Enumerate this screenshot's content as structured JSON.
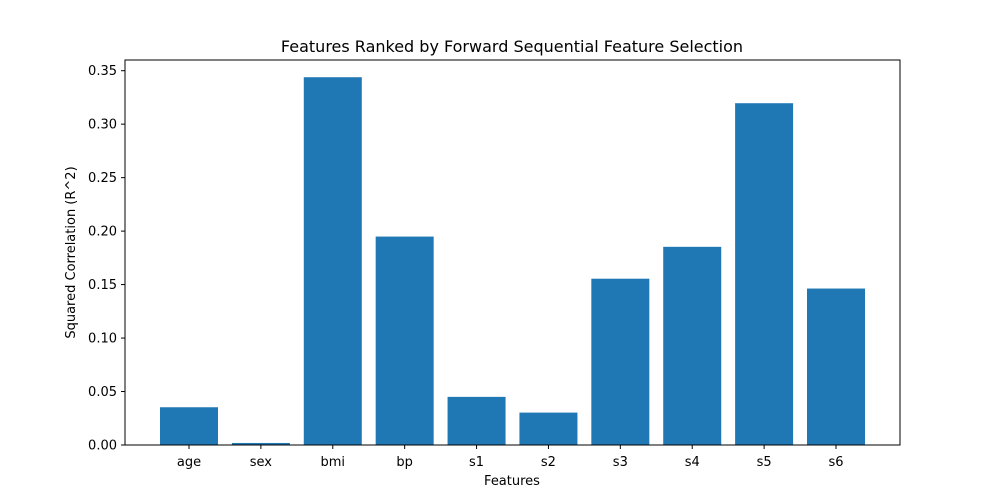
{
  "chart_data": {
    "type": "bar",
    "title": "Features Ranked by Forward Sequential Feature Selection",
    "xlabel": "Features",
    "ylabel": "Squared Correlation (R^2)",
    "categories": [
      "age",
      "sex",
      "bmi",
      "bp",
      "s1",
      "s2",
      "s3",
      "s4",
      "s5",
      "s6"
    ],
    "values": [
      0.0353,
      0.0019,
      0.3439,
      0.1949,
      0.045,
      0.0303,
      0.1555,
      0.1853,
      0.3196,
      0.1463
    ],
    "ylim": [
      0,
      0.36
    ],
    "yticks": [
      0.0,
      0.05,
      0.1,
      0.15,
      0.2,
      0.25,
      0.3,
      0.35
    ],
    "ytick_labels": [
      "0.00",
      "0.05",
      "0.10",
      "0.15",
      "0.20",
      "0.25",
      "0.30",
      "0.35"
    ],
    "grid": false,
    "bar_color": "#1f77b4"
  }
}
